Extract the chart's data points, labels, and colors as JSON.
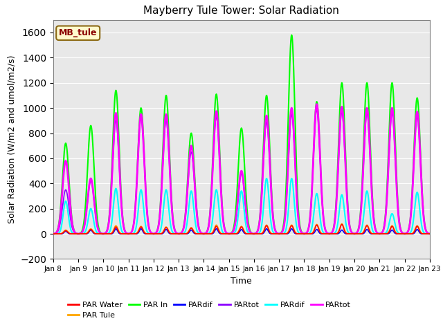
{
  "title": "Mayberry Tule Tower: Solar Radiation",
  "xlabel": "Time",
  "ylabel": "Solar Radiation (W/m2 and umol/m2/s)",
  "ylim": [
    -200,
    1700
  ],
  "xlim": [
    0,
    15
  ],
  "yticks": [
    -200,
    0,
    200,
    400,
    600,
    800,
    1000,
    1200,
    1400,
    1600
  ],
  "xtick_labels": [
    "Jan 8",
    "Jan 9",
    "Jan 10",
    "Jan 11",
    "Jan 12",
    "Jan 13",
    "Jan 14",
    "Jan 15",
    "Jan 16",
    "Jan 17",
    "Jan 18",
    "Jan 19",
    "Jan 20",
    "Jan 21",
    "Jan 22",
    "Jan 23"
  ],
  "annotation_text": "MB_tule",
  "annotation_color": "#8B0000",
  "annotation_bg": "#FFFACD",
  "annotation_border": "#8B6914",
  "plot_bg": "#E8E8E8",
  "series": {
    "PAR Water": {
      "color": "#FF0000",
      "lw": 1.2
    },
    "PAR Tule": {
      "color": "#FFA500",
      "lw": 1.2
    },
    "PAR In": {
      "color": "#00FF00",
      "lw": 1.5
    },
    "PARdif1": {
      "color": "#0000FF",
      "lw": 1.2
    },
    "PARtot1": {
      "color": "#8B00FF",
      "lw": 1.2
    },
    "PARdif2": {
      "color": "#00FFFF",
      "lw": 1.5
    },
    "PARtot2": {
      "color": "#FF00FF",
      "lw": 2.0
    }
  },
  "day_peaks_green": [
    720,
    860,
    1140,
    1000,
    1100,
    800,
    1110,
    840,
    1100,
    1580,
    1050,
    1200,
    1200,
    1200,
    1080
  ],
  "day_peaks_magenta": [
    580,
    440,
    960,
    950,
    950,
    700,
    975,
    500,
    940,
    1000,
    1030,
    1010,
    1000,
    1000,
    970
  ],
  "day_peaks_cyan": [
    260,
    200,
    360,
    350,
    350,
    340,
    350,
    340,
    440,
    440,
    320,
    310,
    340,
    160,
    330
  ],
  "day_peaks_orange": [
    30,
    40,
    65,
    60,
    55,
    50,
    70,
    60,
    70,
    70,
    75,
    80,
    70,
    65,
    65
  ],
  "day_peaks_red": [
    25,
    35,
    55,
    55,
    50,
    45,
    60,
    55,
    65,
    65,
    70,
    75,
    65,
    60,
    60
  ],
  "day_peaks_blue": [
    20,
    30,
    40,
    40,
    35,
    30,
    40,
    35,
    40,
    40,
    35,
    30,
    35,
    30,
    35
  ],
  "day_peaks_purple": [
    350,
    420,
    900,
    920,
    900,
    650,
    930,
    480,
    890,
    950,
    990,
    970,
    960,
    960,
    930
  ]
}
